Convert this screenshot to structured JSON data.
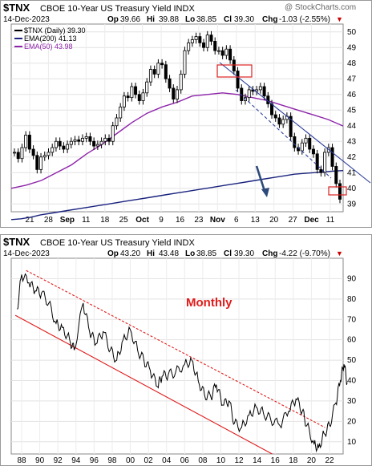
{
  "chart_data": [
    {
      "type": "line",
      "ticker": "$TNX",
      "description": "CBOE 10-Year US Treasury Yield INDX",
      "date": "14-Dec-2023",
      "quote": {
        "open_label": "Op",
        "open": "39.66",
        "high_label": "Hi",
        "high": "39.88",
        "low_label": "Lo",
        "low": "38.85",
        "close_label": "Cl",
        "close": "39.30",
        "change_label": "Chg",
        "change": "-1.03 (-2.55%)",
        "change_arrow": "▼"
      },
      "watermark": "@ StockCharts.com",
      "ylim": [
        38.5,
        50.5
      ],
      "y_ticks": [
        39,
        40,
        41,
        42,
        43,
        44,
        45,
        46,
        47,
        48,
        49,
        50
      ],
      "x_tick_labels": [
        "21",
        "28",
        "Sep",
        "11",
        "18",
        "25",
        "Oct",
        "9",
        "16",
        "23",
        "Nov",
        "6",
        "13",
        "20",
        "27",
        "Dec",
        "11"
      ],
      "legend": [
        {
          "name": "$TNX (Daily) 39.30",
          "color": "#000000"
        },
        {
          "name": "EMA(200) 41.13",
          "color": "#1a237e"
        },
        {
          "name": "EMA(50) 43.98",
          "color": "#8e24aa"
        }
      ],
      "series": [
        {
          "name": "$TNX (Daily) 39.30",
          "values": [
            42.3,
            41.9,
            42.6,
            43.4,
            42.5,
            42.1,
            41.2,
            42.0,
            42.1,
            42.3,
            42.6,
            43.0,
            42.7,
            42.5,
            42.8,
            43.0,
            43.1,
            43.0,
            43.2,
            43.3,
            43.0,
            42.7,
            42.8,
            43.0,
            43.2,
            43.0,
            44.0,
            44.5,
            45.2,
            45.9,
            45.8,
            46.5,
            46.0,
            45.6,
            46.1,
            46.8,
            47.6,
            47.3,
            48.0,
            47.9,
            47.0,
            46.4,
            45.7,
            46.3,
            47.3,
            48.8,
            49.3,
            49.5,
            49.7,
            49.3,
            49.0,
            49.8,
            49.4,
            48.8,
            48.8,
            48.5,
            48.9,
            48.2,
            47.5,
            46.4,
            45.6,
            45.8,
            46.3,
            46.2,
            46.3,
            46.5,
            45.9,
            45.4,
            44.7,
            44.5,
            44.1,
            44.4,
            44.6,
            43.3,
            42.6,
            42.4,
            42.9,
            43.2,
            42.5,
            42.2,
            41.2,
            41.0,
            42.3,
            42.6,
            41.4,
            40.3,
            39.3
          ]
        },
        {
          "name": "EMA(200) 41.13",
          "values": [
            38.0,
            38.05,
            38.15,
            38.3,
            38.4,
            38.5,
            38.6,
            38.7,
            38.8,
            38.9,
            39.0,
            39.1,
            39.2,
            39.3,
            39.4,
            39.5,
            39.6,
            39.7,
            39.8,
            39.9,
            40.0,
            40.1,
            40.2,
            40.3,
            40.4,
            40.5,
            40.6,
            40.7,
            40.8,
            40.9,
            40.95,
            41.0,
            41.05,
            41.1,
            41.13
          ]
        },
        {
          "name": "EMA(50) 43.98",
          "values": [
            40.0,
            40.2,
            40.5,
            41.0,
            41.5,
            42.2,
            42.8,
            43.5,
            44.2,
            44.8,
            45.2,
            45.5,
            45.9,
            46.0,
            46.1,
            46.0,
            45.8,
            45.6,
            45.3,
            45.0,
            44.7,
            44.4,
            43.98
          ]
        }
      ],
      "annotations": [
        "Nov",
        "Dec"
      ]
    },
    {
      "type": "line",
      "ticker": "$TNX",
      "description": "CBOE 10-Year US Treasury Yield INDX",
      "date": "14-Dec-2023",
      "quote": {
        "open_label": "Op",
        "open": "43.20",
        "high_label": "Hi",
        "high": "43.48",
        "low_label": "Lo",
        "low": "38.85",
        "close_label": "Cl",
        "close": "39.30",
        "change_label": "Chg",
        "change": "-4.22 (-9.70%)",
        "change_arrow": "▼"
      },
      "annotation": "Monthly",
      "ylim": [
        4,
        100
      ],
      "y_ticks": [
        10,
        20,
        30,
        40,
        50,
        60,
        70,
        80,
        90
      ],
      "x_tick_labels": [
        "88",
        "90",
        "92",
        "94",
        "96",
        "98",
        "00",
        "02",
        "04",
        "06",
        "08",
        "10",
        "12",
        "14",
        "16",
        "18",
        "20",
        "22"
      ],
      "x": [
        1987.5,
        1988,
        1988.8,
        1989.5,
        1990.2,
        1991,
        1991.8,
        1992.5,
        1993.3,
        1993.8,
        1994.8,
        1995.5,
        1996.2,
        1997,
        1997.8,
        1998.5,
        1999.2,
        2000,
        2000.8,
        2001.5,
        2002.2,
        2003,
        2003.5,
        2004.2,
        2005,
        2006,
        2006.8,
        2007.5,
        2008.2,
        2008.9,
        2009.5,
        2010.2,
        2010.9,
        2011.5,
        2012.3,
        2013.1,
        2013.9,
        2014.7,
        2015.5,
        2016.5,
        2017.5,
        2018.3,
        2019.0,
        2019.5,
        2020.3,
        2020.8,
        2021.4,
        2022.0,
        2022.7,
        2023.2,
        2023.6,
        2023.95
      ],
      "y": [
        75,
        92,
        88,
        84,
        83,
        78,
        68,
        66,
        60,
        55,
        78,
        64,
        58,
        64,
        55,
        50,
        60,
        65,
        55,
        50,
        45,
        37,
        42,
        43,
        44,
        48,
        50,
        40,
        33,
        32,
        38,
        28,
        30,
        19,
        17,
        23,
        27,
        24,
        21,
        18,
        25,
        31,
        25,
        18,
        9,
        7,
        14,
        18,
        29,
        40,
        48,
        39
      ],
      "channel_lines": [
        {
          "style": "dashed",
          "from": [
            1988.5,
            94
          ],
          "to": [
            2021.5,
            17
          ]
        },
        {
          "style": "solid",
          "from": [
            1987.3,
            72
          ],
          "to": [
            2016.5,
            2
          ]
        }
      ]
    }
  ]
}
